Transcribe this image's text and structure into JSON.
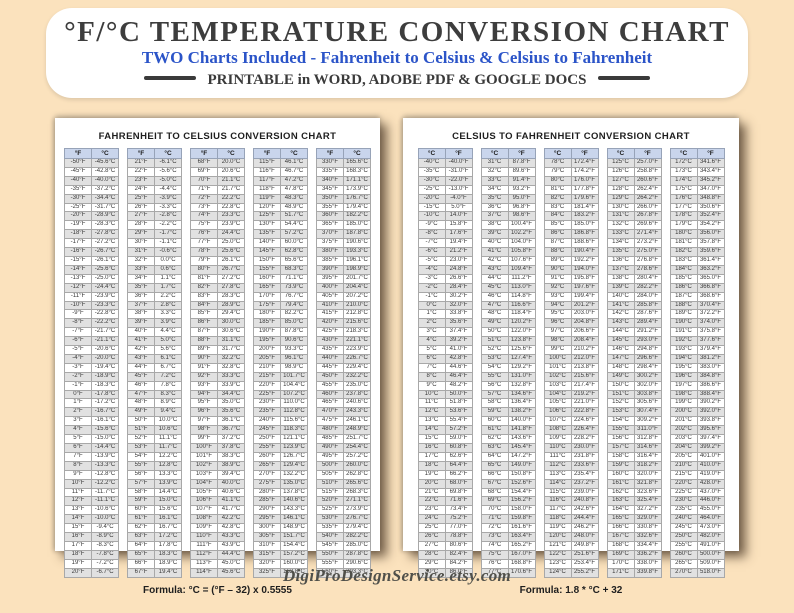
{
  "colors": {
    "background_peach": "#fbe2bd",
    "subtitle_blue": "#2b54c8",
    "table_header_blue": "#c9d5ec",
    "row_stripe_gray": "#e1e1e1"
  },
  "header": {
    "title": "°F/°C TEMPERATURE CONVERSION CHART",
    "subtitle": "TWO Charts Included - Fahrenheit to Celsius & Celsius to Fahrenheit",
    "printable_note": "PRINTABLE in WORD, ADOBE PDF & GOOGLE DOCS"
  },
  "footer": {
    "website": "DigiProDesignService.etsy.com"
  },
  "charts": [
    {
      "title": "FAHRENHEIT TO CELSIUS CONVERSION CHART",
      "col_headers": [
        "°F",
        "°C"
      ],
      "formula": "Formula: °C = (°F – 32) x 0.5555",
      "columns": [
        [
          "-50°F|-45.6°C",
          "-45°F|-42.8°C",
          "-40°F|-40.0°C",
          "-35°F|-37.2°C",
          "-30°F|-34.4°C",
          "-25°F|-31.7°C",
          "-20°F|-28.9°C",
          "-19°F|-28.3°C",
          "-18°F|-27.8°C",
          "-17°F|-27.2°C",
          "-16°F|-26.7°C",
          "-15°F|-26.1°C",
          "-14°F|-25.6°C",
          "-13°F|-25.0°C",
          "-12°F|-24.4°C",
          "-11°F|-23.9°C",
          "-10°F|-23.3°C",
          "-9°F|-22.8°C",
          "-8°F|-22.2°C",
          "-7°F|-21.7°C",
          "-6°F|-21.1°C",
          "-5°F|-20.6°C",
          "-4°F|-20.0°C",
          "-3°F|-19.4°C",
          "-2°F|-18.9°C",
          "-1°F|-18.3°C",
          "0°F|-17.8°C",
          "1°F|-17.2°C",
          "2°F|-16.7°C",
          "3°F|-16.1°C",
          "4°F|-15.6°C",
          "5°F|-15.0°C",
          "6°F|-14.4°C",
          "7°F|-13.9°C",
          "8°F|-13.3°C",
          "9°F|-12.8°C",
          "10°F|-12.2°C",
          "11°F|-11.7°C",
          "12°F|-11.1°C",
          "13°F|-10.6°C",
          "14°F|-10.0°C",
          "15°F|-9.4°C",
          "16°F|-8.9°C",
          "17°F|-8.3°C",
          "18°F|-7.8°C",
          "19°F|-7.2°C",
          "20°F|-6.7°C"
        ],
        [
          "21°F|-6.1°C",
          "22°F|-5.6°C",
          "23°F|-5.0°C",
          "24°F|-4.4°C",
          "25°F|-3.9°C",
          "26°F|-3.3°C",
          "27°F|-2.8°C",
          "28°F|-2.2°C",
          "29°F|-1.7°C",
          "30°F|-1.1°C",
          "31°F|-0.6°C",
          "32°F|0.0°C",
          "33°F|0.6°C",
          "34°F|1.1°C",
          "35°F|1.7°C",
          "36°F|2.2°C",
          "37°F|2.8°C",
          "38°F|3.3°C",
          "39°F|3.9°C",
          "40°F|4.4°C",
          "41°F|5.0°C",
          "42°F|5.6°C",
          "43°F|6.1°C",
          "44°F|6.7°C",
          "45°F|7.2°C",
          "46°F|7.8°C",
          "47°F|8.3°C",
          "48°F|8.9°C",
          "49°F|9.4°C",
          "50°F|10.0°C",
          "51°F|10.6°C",
          "52°F|11.1°C",
          "53°F|11.7°C",
          "54°F|12.2°C",
          "55°F|12.8°C",
          "56°F|13.3°C",
          "57°F|13.9°C",
          "58°F|14.4°C",
          "59°F|15.0°C",
          "60°F|15.6°C",
          "61°F|16.1°C",
          "62°F|16.7°C",
          "63°F|17.2°C",
          "64°F|17.8°C",
          "65°F|18.3°C",
          "66°F|18.9°C",
          "67°F|19.4°C"
        ],
        [
          "68°F|20.0°C",
          "69°F|20.6°C",
          "70°F|21.1°C",
          "71°F|21.7°C",
          "72°F|22.2°C",
          "73°F|22.8°C",
          "74°F|23.3°C",
          "75°F|23.9°C",
          "76°F|24.4°C",
          "77°F|25.0°C",
          "78°F|25.6°C",
          "79°F|26.1°C",
          "80°F|26.7°C",
          "81°F|27.2°C",
          "82°F|27.8°C",
          "83°F|28.3°C",
          "84°F|28.9°C",
          "85°F|29.4°C",
          "86°F|30.0°C",
          "87°F|30.6°C",
          "88°F|31.1°C",
          "89°F|31.7°C",
          "90°F|32.2°C",
          "91°F|32.8°C",
          "92°F|33.3°C",
          "93°F|33.9°C",
          "94°F|34.4°C",
          "95°F|35.0°C",
          "96°F|35.6°C",
          "97°F|36.1°C",
          "98°F|36.7°C",
          "99°F|37.2°C",
          "100°F|37.8°C",
          "101°F|38.3°C",
          "102°F|38.9°C",
          "103°F|39.4°C",
          "104°F|40.0°C",
          "105°F|40.6°C",
          "106°F|41.1°C",
          "107°F|41.7°C",
          "108°F|42.2°C",
          "109°F|42.8°C",
          "110°F|43.3°C",
          "111°F|43.9°C",
          "112°F|44.4°C",
          "113°F|45.0°C",
          "114°F|45.6°C"
        ],
        [
          "115°F|46.1°C",
          "116°F|46.7°C",
          "117°F|47.2°C",
          "118°F|47.8°C",
          "119°F|48.3°C",
          "120°F|48.9°C",
          "125°F|51.7°C",
          "130°F|54.4°C",
          "135°F|57.2°C",
          "140°F|60.0°C",
          "145°F|62.8°C",
          "150°F|65.6°C",
          "155°F|68.3°C",
          "160°F|71.1°C",
          "165°F|73.9°C",
          "170°F|76.7°C",
          "175°F|79.4°C",
          "180°F|82.2°C",
          "185°F|85.0°C",
          "190°F|87.8°C",
          "195°F|90.6°C",
          "200°F|93.3°C",
          "205°F|96.1°C",
          "210°F|98.9°C",
          "215°F|101.7°C",
          "220°F|104.4°C",
          "225°F|107.2°C",
          "230°F|110.0°C",
          "235°F|112.8°C",
          "240°F|115.6°C",
          "245°F|118.3°C",
          "250°F|121.1°C",
          "255°F|123.9°C",
          "260°F|126.7°C",
          "265°F|129.4°C",
          "270°F|132.2°C",
          "275°F|135.0°C",
          "280°F|137.8°C",
          "285°F|140.6°C",
          "290°F|143.3°C",
          "295°F|146.1°C",
          "300°F|148.9°C",
          "305°F|151.7°C",
          "310°F|154.4°C",
          "315°F|157.2°C",
          "320°F|160.0°C",
          "325°F|162.8°C"
        ],
        [
          "330°F|165.6°C",
          "335°F|168.3°C",
          "340°F|171.1°C",
          "345°F|173.9°C",
          "350°F|176.7°C",
          "355°F|179.4°C",
          "360°F|182.2°C",
          "365°F|185.0°C",
          "370°F|187.8°C",
          "375°F|190.6°C",
          "380°F|193.3°C",
          "385°F|196.1°C",
          "390°F|198.9°C",
          "395°F|201.7°C",
          "400°F|204.4°C",
          "405°F|207.2°C",
          "410°F|210.0°C",
          "415°F|212.8°C",
          "420°F|215.6°C",
          "425°F|218.3°C",
          "430°F|221.1°C",
          "435°F|223.9°C",
          "440°F|226.7°C",
          "445°F|229.4°C",
          "450°F|232.2°C",
          "455°F|235.0°C",
          "460°F|237.8°C",
          "465°F|240.6°C",
          "470°F|243.3°C",
          "475°F|246.1°C",
          "480°F|248.9°C",
          "485°F|251.7°C",
          "490°F|254.4°C",
          "495°F|257.2°C",
          "500°F|260.0°C",
          "505°F|262.8°C",
          "510°F|265.6°C",
          "515°F|268.3°C",
          "520°F|271.1°C",
          "525°F|273.9°C",
          "530°F|276.7°C",
          "535°F|279.4°C",
          "540°F|282.2°C",
          "545°F|285.0°C",
          "550°F|287.8°C",
          "555°F|290.6°C",
          "560°F|293.3°C"
        ]
      ]
    },
    {
      "title": "CELSIUS TO FAHRENHEIT CONVERSION CHART",
      "col_headers": [
        "°C",
        "°F"
      ],
      "formula": "Formula: 1.8 * °C + 32",
      "columns": [
        [
          "-40°C|-40.0°F",
          "-35°C|-31.0°F",
          "-30°C|-22.0°F",
          "-25°C|-13.0°F",
          "-20°C|-4.0°F",
          "-15°C|5.0°F",
          "-10°C|14.0°F",
          "-9°C|15.8°F",
          "-8°C|17.6°F",
          "-7°C|19.4°F",
          "-6°C|21.2°F",
          "-5°C|23.0°F",
          "-4°C|24.8°F",
          "-3°C|26.6°F",
          "-2°C|28.4°F",
          "-1°C|30.2°F",
          "0°C|32.0°F",
          "1°C|33.8°F",
          "2°C|35.6°F",
          "3°C|37.4°F",
          "4°C|39.2°F",
          "5°C|41.0°F",
          "6°C|42.8°F",
          "7°C|44.6°F",
          "8°C|46.4°F",
          "9°C|48.2°F",
          "10°C|50.0°F",
          "11°C|51.8°F",
          "12°C|53.6°F",
          "13°C|55.4°F",
          "14°C|57.2°F",
          "15°C|59.0°F",
          "16°C|60.8°F",
          "17°C|62.6°F",
          "18°C|64.4°F",
          "19°C|66.2°F",
          "20°C|68.0°F",
          "21°C|69.8°F",
          "22°C|71.6°F",
          "23°C|73.4°F",
          "24°C|75.2°F",
          "25°C|77.0°F",
          "26°C|78.8°F",
          "27°C|80.6°F",
          "28°C|82.4°F",
          "29°C|84.2°F",
          "30°C|86.0°F"
        ],
        [
          "31°C|87.8°F",
          "32°C|89.6°F",
          "33°C|91.4°F",
          "34°C|93.2°F",
          "35°C|95.0°F",
          "36°C|96.8°F",
          "37°C|98.6°F",
          "38°C|100.4°F",
          "39°C|102.2°F",
          "40°C|104.0°F",
          "41°C|105.8°F",
          "42°C|107.6°F",
          "43°C|109.4°F",
          "44°C|111.2°F",
          "45°C|113.0°F",
          "46°C|114.8°F",
          "47°C|116.6°F",
          "48°C|118.4°F",
          "49°C|120.2°F",
          "50°C|122.0°F",
          "51°C|123.8°F",
          "52°C|125.6°F",
          "53°C|127.4°F",
          "54°C|129.2°F",
          "55°C|131.0°F",
          "56°C|132.8°F",
          "57°C|134.6°F",
          "58°C|136.4°F",
          "59°C|138.2°F",
          "60°C|140.0°F",
          "61°C|141.8°F",
          "62°C|143.6°F",
          "63°C|145.4°F",
          "64°C|147.2°F",
          "65°C|149.0°F",
          "66°C|150.8°F",
          "67°C|152.6°F",
          "68°C|154.4°F",
          "69°C|156.2°F",
          "70°C|158.0°F",
          "71°C|159.8°F",
          "72°C|161.6°F",
          "73°C|163.4°F",
          "74°C|165.2°F",
          "75°C|167.0°F",
          "76°C|168.8°F",
          "77°C|170.6°F"
        ],
        [
          "78°C|172.4°F",
          "79°C|174.2°F",
          "80°C|176.0°F",
          "81°C|177.8°F",
          "82°C|179.6°F",
          "83°C|181.4°F",
          "84°C|183.2°F",
          "85°C|185.0°F",
          "86°C|186.8°F",
          "87°C|188.6°F",
          "88°C|190.4°F",
          "89°C|192.2°F",
          "90°C|194.0°F",
          "91°C|195.8°F",
          "92°C|197.6°F",
          "93°C|199.4°F",
          "94°C|201.2°F",
          "95°C|203.0°F",
          "96°C|204.8°F",
          "97°C|206.6°F",
          "98°C|208.4°F",
          "99°C|210.2°F",
          "100°C|212.0°F",
          "101°C|213.8°F",
          "102°C|215.6°F",
          "103°C|217.4°F",
          "104°C|219.2°F",
          "105°C|221.0°F",
          "106°C|222.8°F",
          "107°C|224.6°F",
          "108°C|226.4°F",
          "109°C|228.2°F",
          "110°C|230.0°F",
          "111°C|231.8°F",
          "112°C|233.6°F",
          "113°C|235.4°F",
          "114°C|237.2°F",
          "115°C|239.0°F",
          "116°C|240.8°F",
          "117°C|242.6°F",
          "118°C|244.4°F",
          "119°C|246.2°F",
          "120°C|248.0°F",
          "121°C|249.8°F",
          "122°C|251.6°F",
          "123°C|253.4°F",
          "124°C|255.2°F"
        ],
        [
          "125°C|257.0°F",
          "126°C|258.8°F",
          "127°C|260.6°F",
          "128°C|262.4°F",
          "129°C|264.2°F",
          "130°C|266.0°F",
          "131°C|267.8°F",
          "132°C|269.6°F",
          "133°C|271.4°F",
          "134°C|273.2°F",
          "135°C|275.0°F",
          "136°C|276.8°F",
          "137°C|278.6°F",
          "138°C|280.4°F",
          "139°C|282.2°F",
          "140°C|284.0°F",
          "141°C|285.8°F",
          "142°C|287.6°F",
          "143°C|289.4°F",
          "144°C|291.2°F",
          "145°C|293.0°F",
          "146°C|294.8°F",
          "147°C|296.6°F",
          "148°C|298.4°F",
          "149°C|300.2°F",
          "150°C|302.0°F",
          "151°C|303.8°F",
          "152°C|305.6°F",
          "153°C|307.4°F",
          "154°C|309.2°F",
          "155°C|311.0°F",
          "156°C|312.8°F",
          "157°C|314.6°F",
          "158°C|316.4°F",
          "159°C|318.2°F",
          "160°C|320.0°F",
          "161°C|321.8°F",
          "162°C|323.6°F",
          "163°C|325.4°F",
          "164°C|327.2°F",
          "165°C|329.0°F",
          "166°C|330.8°F",
          "167°C|332.6°F",
          "168°C|334.4°F",
          "169°C|336.2°F",
          "170°C|338.0°F",
          "171°C|339.8°F"
        ],
        [
          "172°C|341.6°F",
          "173°C|343.4°F",
          "174°C|345.2°F",
          "175°C|347.0°F",
          "176°C|348.8°F",
          "177°C|350.6°F",
          "178°C|352.4°F",
          "179°C|354.2°F",
          "180°C|356.0°F",
          "181°C|357.8°F",
          "182°C|359.6°F",
          "183°C|361.4°F",
          "184°C|363.2°F",
          "185°C|365.0°F",
          "186°C|366.8°F",
          "187°C|368.6°F",
          "188°C|370.4°F",
          "189°C|372.2°F",
          "190°C|374.0°F",
          "191°C|375.8°F",
          "192°C|377.6°F",
          "193°C|379.4°F",
          "194°C|381.2°F",
          "195°C|383.0°F",
          "196°C|384.8°F",
          "197°C|386.6°F",
          "198°C|388.4°F",
          "199°C|390.2°F",
          "200°C|392.0°F",
          "201°C|393.8°F",
          "202°C|395.6°F",
          "203°C|397.4°F",
          "204°C|399.2°F",
          "205°C|401.0°F",
          "210°C|410.0°F",
          "215°C|419.0°F",
          "220°C|428.0°F",
          "225°C|437.0°F",
          "230°C|446.0°F",
          "235°C|455.0°F",
          "240°C|464.0°F",
          "245°C|473.0°F",
          "250°C|482.0°F",
          "255°C|491.0°F",
          "260°C|500.0°F",
          "265°C|509.0°F",
          "270°C|518.0°F"
        ]
      ]
    }
  ]
}
